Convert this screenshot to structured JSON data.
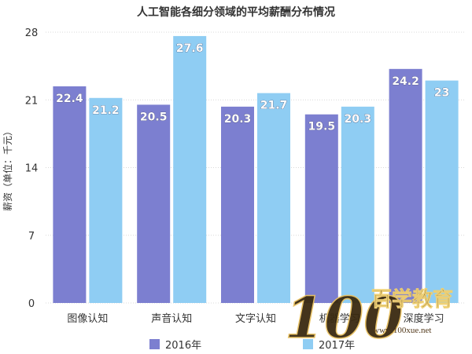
{
  "chart_data": {
    "type": "bar",
    "title": "人工智能各细分领域的平均薪酬分布情况",
    "ylabel": "薪资（单位：千元）",
    "xlabel": "",
    "ylim": [
      0,
      28
    ],
    "yticks": [
      0,
      7,
      14,
      21,
      28
    ],
    "grid": true,
    "legend_position": "bottom",
    "categories": [
      "图像认知",
      "声音认知",
      "文字认知",
      "机器学习",
      "深度学习"
    ],
    "series": [
      {
        "name": "2016年",
        "color": "#7c7fd0",
        "values": [
          22.4,
          20.5,
          20.3,
          19.5,
          24.2
        ]
      },
      {
        "name": "2017年",
        "color": "#8fcdf3",
        "values": [
          21.2,
          27.6,
          21.7,
          20.3,
          23
        ]
      }
    ]
  },
  "watermark": {
    "text_big": "100",
    "text_cn": "百学教育",
    "url": "www.100xue.net"
  }
}
